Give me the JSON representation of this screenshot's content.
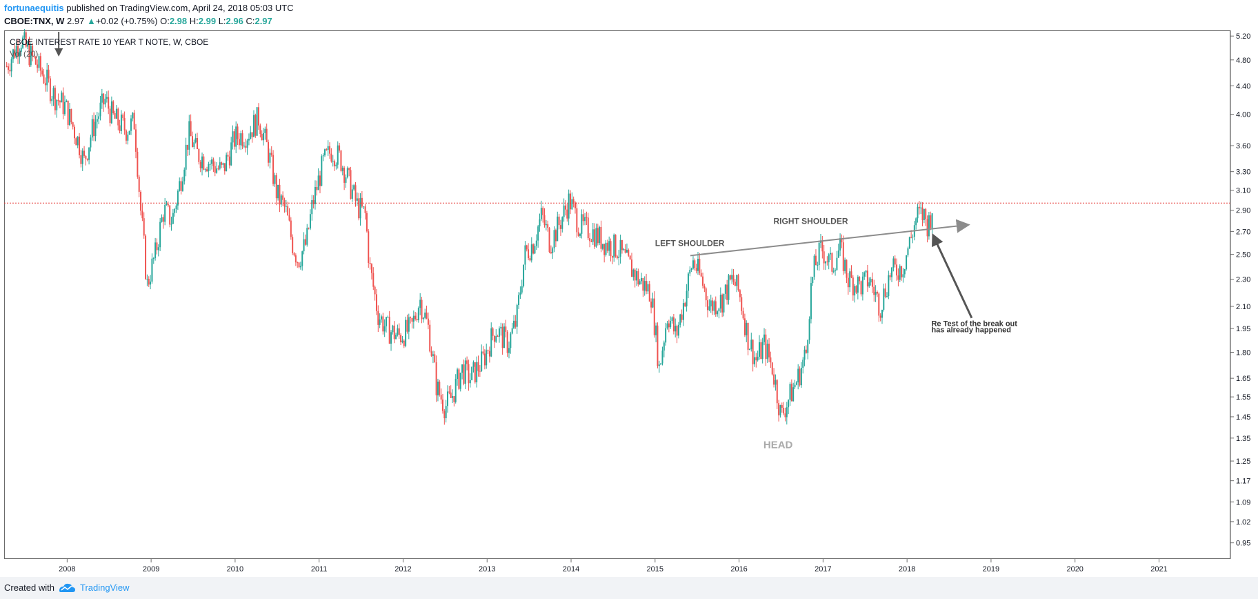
{
  "header": {
    "author": "fortunaequitis",
    "published_text": " published on TradingView.com, April 24, 2018 05:03 UTC",
    "symbol_interval": "CBOE:TNX, W",
    "last": "2.97",
    "change": "+0.02 (+0.75%)",
    "open_label": "O:",
    "open": "2.98",
    "high_label": "H:",
    "high": "2.99",
    "low_label": "L:",
    "low": "2.96",
    "close_label": "C:",
    "close": "2.97"
  },
  "legend": {
    "series_title": "CBOE INTEREST RATE 10 YEAR T NOTE, W, CBOE",
    "study": "Vol (20)"
  },
  "footer": {
    "created_with": "Created with",
    "brand": "TradingView"
  },
  "colors": {
    "up": "#26a69a",
    "down": "#ef5350",
    "accent": "#2196f3",
    "price_line": "#e53935",
    "annotation": "#8c8c8c"
  },
  "chart_data": {
    "type": "candlestick",
    "interval": "W",
    "x_range": [
      2007.25,
      2021.85
    ],
    "y_range": [
      0.9,
      5.3
    ],
    "y_scale": "log",
    "x_ticks": [
      "2008",
      "2009",
      "2010",
      "2011",
      "2012",
      "2013",
      "2014",
      "2015",
      "2016",
      "2017",
      "2018",
      "2019",
      "2020",
      "2021"
    ],
    "y_ticks": [
      "5.20",
      "4.80",
      "4.40",
      "4.00",
      "3.60",
      "3.30",
      "3.10",
      "2.90",
      "2.70",
      "2.50",
      "2.30",
      "2.10",
      "1.95",
      "1.80",
      "1.65",
      "1.55",
      "1.45",
      "1.35",
      "1.25",
      "1.17",
      "1.09",
      "1.02",
      "0.95"
    ],
    "current_price": 2.97,
    "close_path": [
      [
        2007.28,
        4.7
      ],
      [
        2007.45,
        5.15
      ],
      [
        2007.55,
        4.9
      ],
      [
        2007.7,
        4.6
      ],
      [
        2007.85,
        4.25
      ],
      [
        2007.98,
        4.1
      ],
      [
        2008.15,
        3.6
      ],
      [
        2008.2,
        3.4
      ],
      [
        2008.3,
        3.8
      ],
      [
        2008.45,
        4.2
      ],
      [
        2008.55,
        3.95
      ],
      [
        2008.7,
        3.8
      ],
      [
        2008.8,
        3.9
      ],
      [
        2008.87,
        2.95
      ],
      [
        2008.95,
        2.25
      ],
      [
        2009.05,
        2.5
      ],
      [
        2009.15,
        2.9
      ],
      [
        2009.25,
        2.8
      ],
      [
        2009.35,
        3.2
      ],
      [
        2009.45,
        3.75
      ],
      [
        2009.55,
        3.5
      ],
      [
        2009.7,
        3.4
      ],
      [
        2009.85,
        3.3
      ],
      [
        2010.0,
        3.7
      ],
      [
        2010.15,
        3.75
      ],
      [
        2010.28,
        3.95
      ],
      [
        2010.4,
        3.5
      ],
      [
        2010.5,
        3.05
      ],
      [
        2010.6,
        2.9
      ],
      [
        2010.68,
        2.6
      ],
      [
        2010.75,
        2.45
      ],
      [
        2010.85,
        2.6
      ],
      [
        2010.92,
        2.95
      ],
      [
        2011.05,
        3.4
      ],
      [
        2011.15,
        3.55
      ],
      [
        2011.25,
        3.45
      ],
      [
        2011.35,
        3.2
      ],
      [
        2011.45,
        2.95
      ],
      [
        2011.55,
        2.85
      ],
      [
        2011.6,
        2.4
      ],
      [
        2011.7,
        2.05
      ],
      [
        2011.8,
        1.95
      ],
      [
        2011.95,
        1.9
      ],
      [
        2012.1,
        1.95
      ],
      [
        2012.2,
        2.15
      ],
      [
        2012.3,
        1.95
      ],
      [
        2012.4,
        1.6
      ],
      [
        2012.5,
        1.5
      ],
      [
        2012.58,
        1.55
      ],
      [
        2012.7,
        1.7
      ],
      [
        2012.8,
        1.65
      ],
      [
        2012.95,
        1.75
      ],
      [
        2013.1,
        1.95
      ],
      [
        2013.25,
        1.85
      ],
      [
        2013.35,
        2.0
      ],
      [
        2013.45,
        2.5
      ],
      [
        2013.55,
        2.6
      ],
      [
        2013.65,
        2.85
      ],
      [
        2013.75,
        2.6
      ],
      [
        2013.85,
        2.75
      ],
      [
        2013.98,
        3.0
      ],
      [
        2014.1,
        2.75
      ],
      [
        2014.25,
        2.7
      ],
      [
        2014.4,
        2.6
      ],
      [
        2014.55,
        2.55
      ],
      [
        2014.65,
        2.45
      ],
      [
        2014.8,
        2.3
      ],
      [
        2014.95,
        2.2
      ],
      [
        2015.05,
        1.7
      ],
      [
        2015.15,
        2.05
      ],
      [
        2015.25,
        1.9
      ],
      [
        2015.35,
        2.15
      ],
      [
        2015.45,
        2.45
      ],
      [
        2015.55,
        2.3
      ],
      [
        2015.65,
        2.1
      ],
      [
        2015.8,
        2.15
      ],
      [
        2015.92,
        2.3
      ],
      [
        2016.0,
        2.2
      ],
      [
        2016.1,
        1.9
      ],
      [
        2016.2,
        1.75
      ],
      [
        2016.3,
        1.85
      ],
      [
        2016.4,
        1.7
      ],
      [
        2016.5,
        1.45
      ],
      [
        2016.6,
        1.55
      ],
      [
        2016.7,
        1.65
      ],
      [
        2016.8,
        1.8
      ],
      [
        2016.85,
        2.2
      ],
      [
        2016.9,
        2.4
      ],
      [
        2016.98,
        2.55
      ],
      [
        2017.1,
        2.4
      ],
      [
        2017.2,
        2.55
      ],
      [
        2017.3,
        2.3
      ],
      [
        2017.45,
        2.25
      ],
      [
        2017.55,
        2.3
      ],
      [
        2017.68,
        2.1
      ],
      [
        2017.8,
        2.35
      ],
      [
        2017.95,
        2.4
      ],
      [
        2018.05,
        2.65
      ],
      [
        2018.12,
        2.85
      ],
      [
        2018.2,
        2.85
      ],
      [
        2018.25,
        2.75
      ],
      [
        2018.31,
        2.97
      ]
    ]
  },
  "annotations": {
    "left_shoulder": "LEFT SHOULDER",
    "right_shoulder": "RIGHT SHOULDER",
    "head": "HEAD",
    "note_line1": "Re Test of the break out",
    "note_line2": "has already happened"
  },
  "icons": {
    "footer_logo": "tradingview-cloud-icon",
    "change_arrow": "triangle-up-icon"
  }
}
